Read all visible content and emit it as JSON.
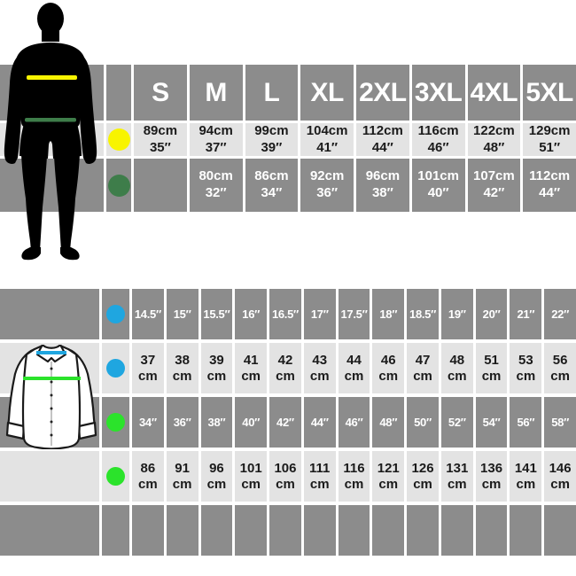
{
  "colors": {
    "row_dark": "#8c8c8c",
    "row_light": "#e3e3e3",
    "silhouette": "#000000",
    "shirt_outline": "#1a1a1a",
    "measure_yellow": "#f8f400",
    "measure_dark_green": "#3e7d4a",
    "measure_blue": "#1fa6e0",
    "measure_green": "#2be32b"
  },
  "chart_data": [
    {
      "type": "table",
      "columns": [
        "S",
        "M",
        "L",
        "XL",
        "2XL",
        "3XL",
        "4XL",
        "5XL"
      ],
      "rows": [
        {
          "marker_name": "yellow-dot",
          "marker_color": "#f8f400",
          "values": [
            "89cm\n35″",
            "94cm\n37″",
            "99cm\n39″",
            "104cm\n41″",
            "112cm\n44″",
            "116cm\n46″",
            "122cm\n48″",
            "129cm\n51″"
          ]
        },
        {
          "marker_name": "dark-green-dot",
          "marker_color": "#3e7d4a",
          "values": [
            "",
            "80cm\n32″",
            "86cm\n34″",
            "92cm\n36″",
            "96cm\n38″",
            "101cm\n40″",
            "107cm\n42″",
            "112cm\n44″"
          ]
        }
      ]
    },
    {
      "type": "table",
      "rows": [
        {
          "marker_name": "blue-dot",
          "marker_color": "#1fa6e0",
          "values": [
            "14.5″",
            "15″",
            "15.5″",
            "16″",
            "16.5″",
            "17″",
            "17.5″",
            "18″",
            "18.5″",
            "19″",
            "20″",
            "21″",
            "22″"
          ]
        },
        {
          "marker_name": "blue-dot",
          "marker_color": "#1fa6e0",
          "values": [
            "37\ncm",
            "38\ncm",
            "39\ncm",
            "41\ncm",
            "42\ncm",
            "43\ncm",
            "44\ncm",
            "46\ncm",
            "47\ncm",
            "48\ncm",
            "51\ncm",
            "53\ncm",
            "56\ncm"
          ]
        },
        {
          "marker_name": "green-dot",
          "marker_color": "#2be32b",
          "values": [
            "34″",
            "36″",
            "38″",
            "40″",
            "42″",
            "44″",
            "46″",
            "48″",
            "50″",
            "52″",
            "54″",
            "56″",
            "58″"
          ]
        },
        {
          "marker_name": "green-dot",
          "marker_color": "#2be32b",
          "values": [
            "86\ncm",
            "91\ncm",
            "96\ncm",
            "101\ncm",
            "106\ncm",
            "111\ncm",
            "116\ncm",
            "121\ncm",
            "126\ncm",
            "131\ncm",
            "136\ncm",
            "141\ncm",
            "146\ncm"
          ]
        },
        {
          "marker_name": null,
          "marker_color": null,
          "values": [
            "",
            "",
            "",
            "",
            "",
            "",
            "",
            "",
            "",
            "",
            "",
            "",
            ""
          ]
        }
      ]
    }
  ]
}
